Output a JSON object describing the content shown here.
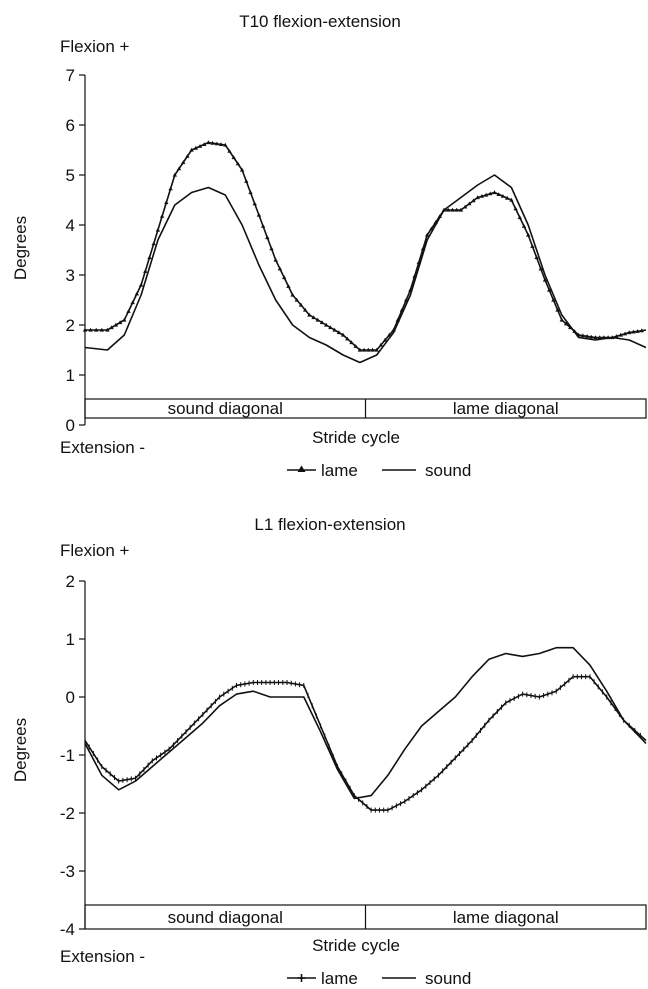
{
  "chart_data": [
    {
      "type": "line",
      "title": "T10 flexion-extension",
      "ylabel": "Degrees",
      "xlabel": "Stride cycle",
      "flexion_label": "Flexion +",
      "extension_label": "Extension -",
      "ylim": [
        0,
        7
      ],
      "yticks": [
        0,
        1,
        2,
        3,
        4,
        5,
        6,
        7
      ],
      "xlim": [
        0,
        100
      ],
      "phases": [
        {
          "label": "sound diagonal",
          "start": 0,
          "end": 50
        },
        {
          "label": "lame diagonal",
          "start": 50,
          "end": 100
        }
      ],
      "legend": {
        "position": "bottom-center"
      },
      "series": [
        {
          "name": "lame",
          "marker": "triangle",
          "x": [
            0,
            4,
            7,
            10,
            13,
            16,
            19,
            22,
            25,
            28,
            31,
            34,
            37,
            40,
            43,
            46,
            49,
            52,
            55,
            58,
            61,
            64,
            67,
            70,
            73,
            76,
            79,
            82,
            85,
            88,
            91,
            94,
            97,
            100
          ],
          "values": [
            1.9,
            1.9,
            2.1,
            2.8,
            3.9,
            5.0,
            5.5,
            5.65,
            5.6,
            5.1,
            4.2,
            3.3,
            2.6,
            2.2,
            2.0,
            1.8,
            1.5,
            1.5,
            1.9,
            2.7,
            3.8,
            4.3,
            4.3,
            4.55,
            4.65,
            4.5,
            3.8,
            2.9,
            2.1,
            1.8,
            1.75,
            1.75,
            1.85,
            1.9
          ]
        },
        {
          "name": "sound",
          "marker": "none",
          "x": [
            0,
            4,
            7,
            10,
            13,
            16,
            19,
            22,
            25,
            28,
            31,
            34,
            37,
            40,
            43,
            46,
            49,
            52,
            55,
            58,
            61,
            64,
            67,
            70,
            73,
            76,
            79,
            82,
            85,
            88,
            91,
            94,
            97,
            100
          ],
          "values": [
            1.55,
            1.5,
            1.8,
            2.6,
            3.7,
            4.4,
            4.65,
            4.75,
            4.6,
            4.0,
            3.2,
            2.5,
            2.0,
            1.75,
            1.6,
            1.4,
            1.25,
            1.4,
            1.85,
            2.6,
            3.7,
            4.3,
            4.55,
            4.8,
            5.0,
            4.75,
            4.0,
            3.0,
            2.2,
            1.75,
            1.7,
            1.75,
            1.7,
            1.55
          ]
        }
      ]
    },
    {
      "type": "line",
      "title": "L1 flexion-extension",
      "ylabel": "Degrees",
      "xlabel": "Stride cycle",
      "flexion_label": "Flexion +",
      "extension_label": "Extension -",
      "ylim": [
        -4,
        2
      ],
      "yticks": [
        -4,
        -3,
        -2,
        -1,
        0,
        1,
        2
      ],
      "xlim": [
        0,
        100
      ],
      "phases": [
        {
          "label": "sound diagonal",
          "start": 0,
          "end": 50
        },
        {
          "label": "lame diagonal",
          "start": 50,
          "end": 100
        }
      ],
      "legend": {
        "position": "bottom-center"
      },
      "series": [
        {
          "name": "lame",
          "marker": "cross",
          "x": [
            0,
            3,
            6,
            9,
            12,
            15,
            18,
            21,
            24,
            27,
            30,
            33,
            36,
            39,
            42,
            45,
            48,
            51,
            54,
            57,
            60,
            63,
            66,
            69,
            72,
            75,
            78,
            81,
            84,
            87,
            90,
            93,
            96,
            100
          ],
          "values": [
            -0.75,
            -1.2,
            -1.45,
            -1.4,
            -1.1,
            -0.9,
            -0.6,
            -0.3,
            0.0,
            0.2,
            0.25,
            0.25,
            0.25,
            0.2,
            -0.5,
            -1.2,
            -1.7,
            -1.95,
            -1.95,
            -1.8,
            -1.6,
            -1.35,
            -1.05,
            -0.75,
            -0.4,
            -0.1,
            0.05,
            0.0,
            0.1,
            0.35,
            0.35,
            0.0,
            -0.4,
            -0.75
          ]
        },
        {
          "name": "sound",
          "marker": "none",
          "x": [
            0,
            3,
            6,
            9,
            12,
            15,
            18,
            21,
            24,
            27,
            30,
            33,
            36,
            39,
            42,
            45,
            48,
            51,
            54,
            57,
            60,
            63,
            66,
            69,
            72,
            75,
            78,
            81,
            84,
            87,
            90,
            93,
            96,
            100
          ],
          "values": [
            -0.8,
            -1.35,
            -1.6,
            -1.45,
            -1.2,
            -0.95,
            -0.7,
            -0.45,
            -0.15,
            0.05,
            0.1,
            0.0,
            0.0,
            0.0,
            -0.6,
            -1.25,
            -1.75,
            -1.7,
            -1.35,
            -0.9,
            -0.5,
            -0.25,
            0.0,
            0.35,
            0.65,
            0.75,
            0.7,
            0.75,
            0.85,
            0.85,
            0.55,
            0.1,
            -0.4,
            -0.8
          ]
        }
      ]
    }
  ]
}
